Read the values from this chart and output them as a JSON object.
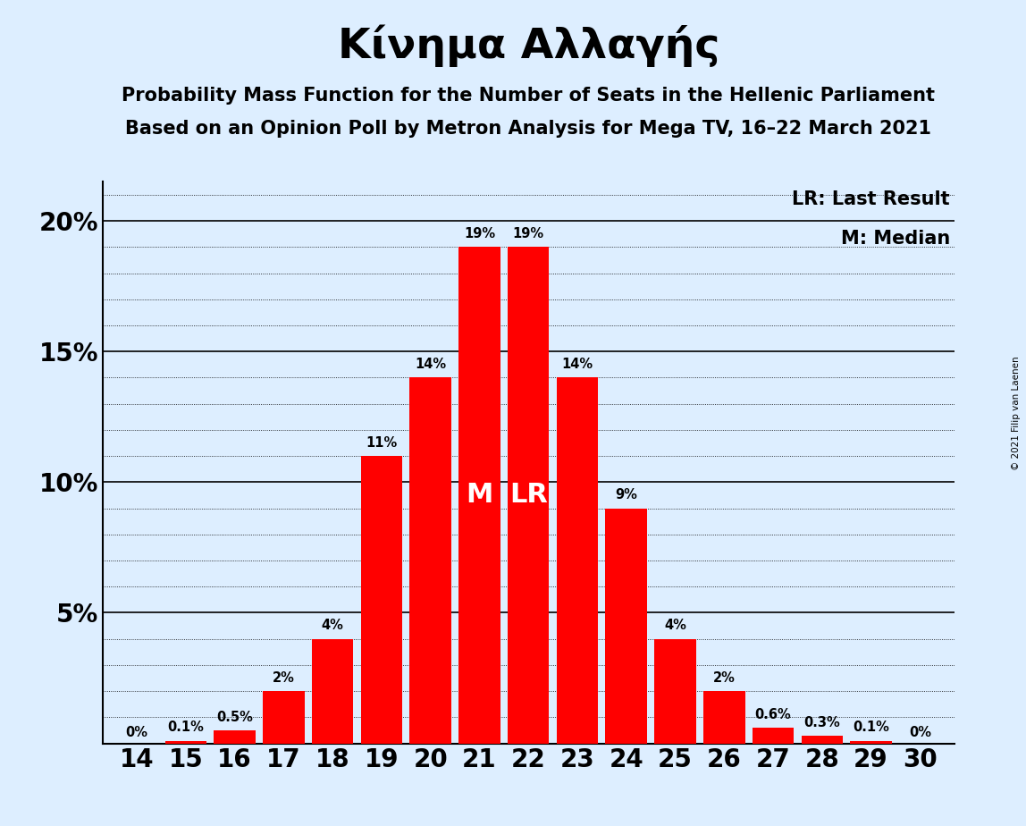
{
  "title": "Κίνημα Αλλαγής",
  "subtitle1": "Probability Mass Function for the Number of Seats in the Hellenic Parliament",
  "subtitle2": "Based on an Opinion Poll by Metron Analysis for Mega TV, 16–22 March 2021",
  "copyright": "© 2021 Filip van Laenen",
  "seats": [
    14,
    15,
    16,
    17,
    18,
    19,
    20,
    21,
    22,
    23,
    24,
    25,
    26,
    27,
    28,
    29,
    30
  ],
  "probabilities": [
    0.0,
    0.1,
    0.5,
    2.0,
    4.0,
    11.0,
    14.0,
    19.0,
    19.0,
    14.0,
    9.0,
    4.0,
    2.0,
    0.6,
    0.3,
    0.1,
    0.0
  ],
  "labels": [
    "0%",
    "0.1%",
    "0.5%",
    "2%",
    "4%",
    "11%",
    "14%",
    "19%",
    "19%",
    "14%",
    "9%",
    "4%",
    "2%",
    "0.6%",
    "0.3%",
    "0.1%",
    "0%"
  ],
  "median_seat": 21,
  "last_result_seat": 22,
  "bar_color": "#FF0000",
  "background_color": "#DDEEFF",
  "ylim_max": 21.5,
  "major_yticks": [
    0,
    5,
    10,
    15,
    20
  ],
  "legend_lr": "LR: Last Result",
  "legend_m": "M: Median"
}
